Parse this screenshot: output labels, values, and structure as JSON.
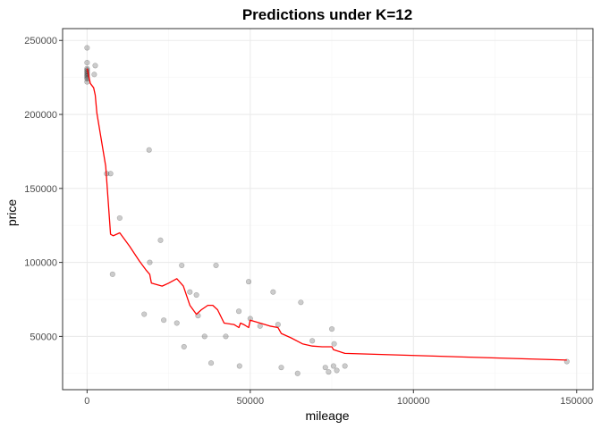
{
  "chart_data": {
    "type": "scatter",
    "title": "Predictions under K=12",
    "xlabel": "mileage",
    "ylabel": "price",
    "xlim": [
      -7500,
      155000
    ],
    "ylim": [
      14000,
      258000
    ],
    "x_ticks": [
      0,
      50000,
      100000,
      150000
    ],
    "x_minor_ticks": [
      25000,
      75000,
      125000
    ],
    "y_ticks": [
      50000,
      100000,
      150000,
      200000,
      250000
    ],
    "y_minor_ticks": [
      25000,
      75000,
      125000,
      175000,
      225000
    ],
    "grid": true,
    "colors": {
      "points": "#000000",
      "prediction_line": "#ff0000",
      "grid_major": "#ebebeb",
      "grid_minor": "#f5f5f5",
      "panel_border": "#333333"
    },
    "series": [
      {
        "type": "scatter",
        "points": [
          [
            0,
            245000
          ],
          [
            0,
            235000
          ],
          [
            0,
            231000
          ],
          [
            0,
            230000
          ],
          [
            0,
            229000
          ],
          [
            0,
            228000
          ],
          [
            0,
            227000
          ],
          [
            0,
            226000
          ],
          [
            0,
            225000
          ],
          [
            0,
            224000
          ],
          [
            0,
            222000
          ],
          [
            2500,
            233000
          ],
          [
            2200,
            227000
          ],
          [
            6000,
            160000
          ],
          [
            7200,
            160000
          ],
          [
            7800,
            92000
          ],
          [
            10000,
            130000
          ],
          [
            17500,
            65000
          ],
          [
            19000,
            176000
          ],
          [
            19200,
            100000
          ],
          [
            22500,
            115000
          ],
          [
            23500,
            61000
          ],
          [
            27500,
            59000
          ],
          [
            29000,
            98000
          ],
          [
            29700,
            43000
          ],
          [
            31500,
            80000
          ],
          [
            33500,
            78000
          ],
          [
            34000,
            64000
          ],
          [
            36000,
            50000
          ],
          [
            38000,
            32000
          ],
          [
            39500,
            98000
          ],
          [
            42500,
            50000
          ],
          [
            46500,
            67000
          ],
          [
            46700,
            30000
          ],
          [
            49500,
            87000
          ],
          [
            50000,
            62000
          ],
          [
            53000,
            57000
          ],
          [
            57000,
            80000
          ],
          [
            58500,
            58000
          ],
          [
            59500,
            29000
          ],
          [
            64500,
            25000
          ],
          [
            65500,
            73000
          ],
          [
            69000,
            47000
          ],
          [
            73000,
            29000
          ],
          [
            74000,
            26000
          ],
          [
            75000,
            55000
          ],
          [
            75500,
            30000
          ],
          [
            75700,
            45000
          ],
          [
            76500,
            27000
          ],
          [
            79000,
            30000
          ],
          [
            147000,
            33000
          ]
        ]
      },
      {
        "type": "line",
        "points": [
          [
            0,
            231000
          ],
          [
            1000,
            221000
          ],
          [
            2000,
            218000
          ],
          [
            2500,
            213000
          ],
          [
            3000,
            201000
          ],
          [
            5700,
            165000
          ],
          [
            7200,
            119000
          ],
          [
            8000,
            118000
          ],
          [
            10000,
            120000
          ],
          [
            13000,
            111000
          ],
          [
            16000,
            101000
          ],
          [
            18000,
            95000
          ],
          [
            19200,
            92000
          ],
          [
            19700,
            86000
          ],
          [
            23000,
            84000
          ],
          [
            25000,
            86000
          ],
          [
            27500,
            89000
          ],
          [
            29500,
            84000
          ],
          [
            31500,
            71000
          ],
          [
            33500,
            65000
          ],
          [
            35000,
            68000
          ],
          [
            37000,
            71000
          ],
          [
            38500,
            71000
          ],
          [
            40000,
            68000
          ],
          [
            42000,
            59000
          ],
          [
            45000,
            58000
          ],
          [
            46500,
            56000
          ],
          [
            47000,
            59000
          ],
          [
            48000,
            58000
          ],
          [
            49500,
            56000
          ],
          [
            50000,
            61000
          ],
          [
            53000,
            59000
          ],
          [
            56000,
            57000
          ],
          [
            58500,
            56000
          ],
          [
            59500,
            52000
          ],
          [
            62500,
            49000
          ],
          [
            66000,
            45000
          ],
          [
            69000,
            43500
          ],
          [
            72000,
            43000
          ],
          [
            75000,
            43000
          ],
          [
            75500,
            41000
          ],
          [
            79000,
            38500
          ],
          [
            147000,
            34000
          ]
        ]
      }
    ]
  }
}
